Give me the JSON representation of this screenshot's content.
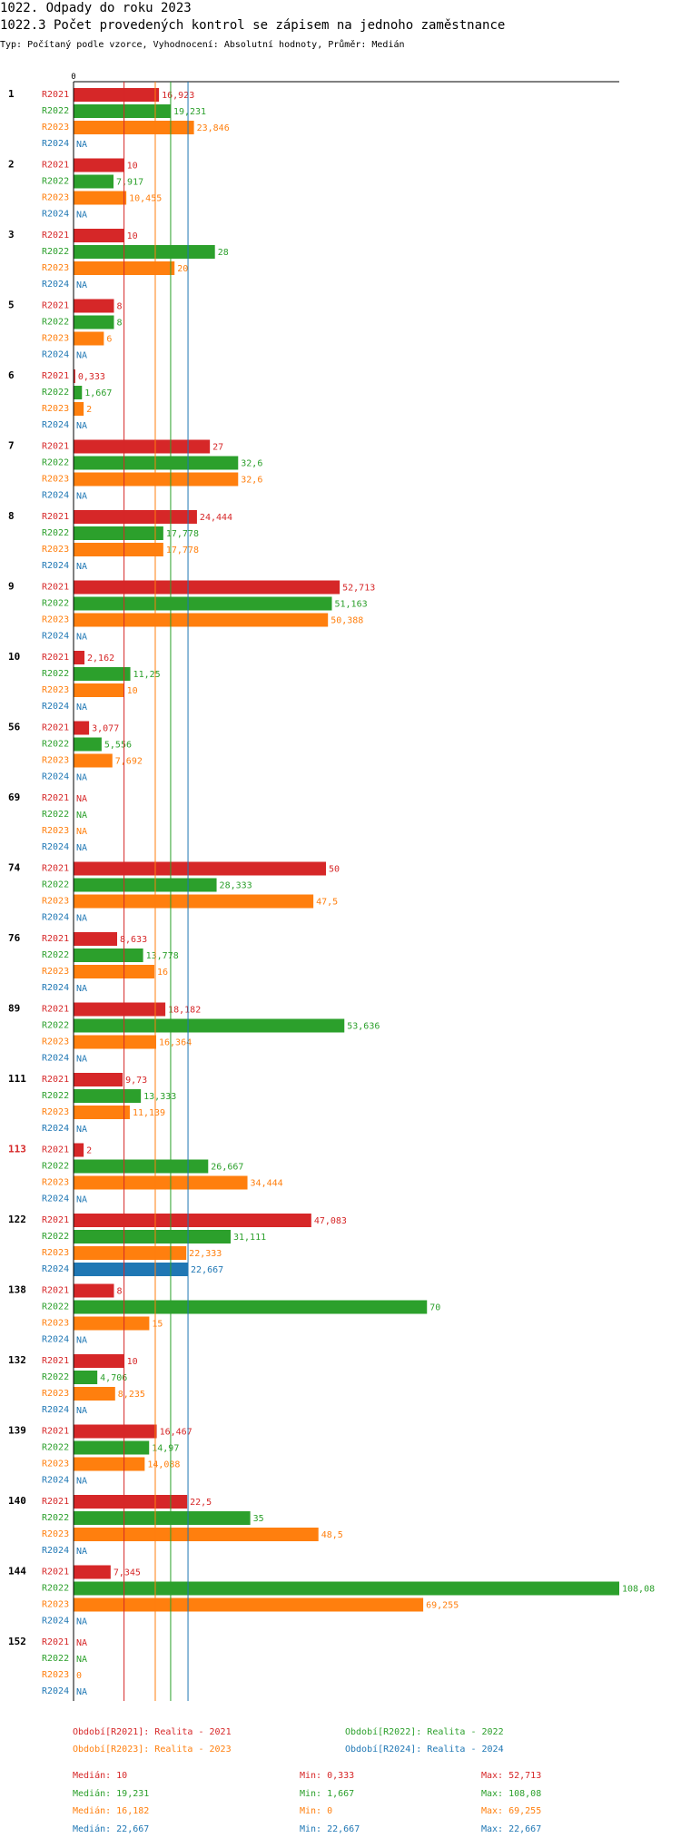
{
  "header": {
    "title": "1022. Odpady do roku 2023",
    "subtitle": "1022.3 Počet provedených kontrol se zápisem na jednoho zaměstnance",
    "meta": "Typ: Počítaný podle vzorce, Vyhodnocení: Absolutní hodnoty, Průměr: Medián"
  },
  "chart_data": {
    "type": "bar",
    "orientation": "horizontal",
    "title": "1022.3 Počet provedených kontrol se zápisem na jednoho zaměstnance",
    "x_axis_zero_label": "0",
    "xlim": [
      0,
      108.08
    ],
    "na_label": "NA",
    "highlighted_category": "113",
    "series_names": [
      "R2021",
      "R2022",
      "R2023",
      "R2024"
    ],
    "colors": {
      "R2021": "#d62728",
      "R2022": "#2ca02c",
      "R2023": "#ff7f0e",
      "R2024": "#1f77b4"
    },
    "categories": [
      "1",
      "2",
      "3",
      "5",
      "6",
      "7",
      "8",
      "9",
      "10",
      "56",
      "69",
      "74",
      "76",
      "89",
      "111",
      "113",
      "122",
      "138",
      "132",
      "139",
      "140",
      "144",
      "152"
    ],
    "series": [
      {
        "name": "R2021",
        "values": [
          16.923,
          10,
          10,
          8,
          0.333,
          27,
          24.444,
          52.713,
          2.162,
          3.077,
          null,
          50,
          8.633,
          18.182,
          9.73,
          2,
          47.083,
          8,
          10,
          16.467,
          22.5,
          7.345,
          null
        ],
        "labels": [
          "16,923",
          "10",
          "10",
          "8",
          "0,333",
          "27",
          "24,444",
          "52,713",
          "2,162",
          "3,077",
          "NA",
          "50",
          "8,633",
          "18,182",
          "9,73",
          "2",
          "47,083",
          "8",
          "10",
          "16,467",
          "22,5",
          "7,345",
          "NA"
        ]
      },
      {
        "name": "R2022",
        "values": [
          19.231,
          7.917,
          28,
          8,
          1.667,
          32.6,
          17.778,
          51.163,
          11.25,
          5.556,
          null,
          28.333,
          13.778,
          53.636,
          13.333,
          26.667,
          31.111,
          70,
          4.706,
          14.97,
          35,
          108.08,
          null
        ],
        "labels": [
          "19,231",
          "7,917",
          "28",
          "8",
          "1,667",
          "32,6",
          "17,778",
          "51,163",
          "11,25",
          "5,556",
          "NA",
          "28,333",
          "13,778",
          "53,636",
          "13,333",
          "26,667",
          "31,111",
          "70",
          "4,706",
          "14,97",
          "35",
          "108,08",
          "NA"
        ]
      },
      {
        "name": "R2023",
        "values": [
          23.846,
          10.455,
          20,
          6,
          2,
          32.6,
          17.778,
          50.388,
          10,
          7.692,
          null,
          47.5,
          16,
          16.364,
          11.139,
          34.444,
          22.333,
          15,
          8.235,
          14.088,
          48.5,
          69.255,
          0
        ],
        "labels": [
          "23,846",
          "10,455",
          "20",
          "6",
          "2",
          "32,6",
          "17,778",
          "50,388",
          "10",
          "7,692",
          "NA",
          "47,5",
          "16",
          "16,364",
          "11,139",
          "34,444",
          "22,333",
          "15",
          "8,235",
          "14,088",
          "48,5",
          "69,255",
          "0"
        ]
      },
      {
        "name": "R2024",
        "values": [
          null,
          null,
          null,
          null,
          null,
          null,
          null,
          null,
          null,
          null,
          null,
          null,
          null,
          null,
          null,
          null,
          22.667,
          null,
          null,
          null,
          null,
          null,
          null
        ],
        "labels": [
          "NA",
          "NA",
          "NA",
          "NA",
          "NA",
          "NA",
          "NA",
          "NA",
          "NA",
          "NA",
          "NA",
          "NA",
          "NA",
          "NA",
          "NA",
          "NA",
          "22,667",
          "NA",
          "NA",
          "NA",
          "NA",
          "NA",
          "NA"
        ]
      }
    ],
    "medians": {
      "R2021": 10,
      "R2022": 19.231,
      "R2023": 16.182,
      "R2024": 22.667
    }
  },
  "legend": {
    "items": [
      {
        "text": "Období[R2021]: Realita - 2021",
        "color": "#d62728"
      },
      {
        "text": "Období[R2022]: Realita - 2022",
        "color": "#2ca02c"
      },
      {
        "text": "Období[R2023]: Realita - 2023",
        "color": "#ff7f0e"
      },
      {
        "text": "Období[R2024]: Realita - 2024",
        "color": "#1f77b4"
      }
    ]
  },
  "stats": [
    {
      "series": "R2021",
      "color": "#d62728",
      "median": "Medián: 10",
      "min": "Min: 0,333",
      "max": "Max: 52,713"
    },
    {
      "series": "R2022",
      "color": "#2ca02c",
      "median": "Medián: 19,231",
      "min": "Min: 1,667",
      "max": "Max: 108,08"
    },
    {
      "series": "R2023",
      "color": "#ff7f0e",
      "median": "Medián: 16,182",
      "min": "Min: 0",
      "max": "Max: 69,255"
    },
    {
      "series": "R2024",
      "color": "#1f77b4",
      "median": "Medián: 22,667",
      "min": "Min: 22,667",
      "max": "Max: 22,667"
    }
  ]
}
